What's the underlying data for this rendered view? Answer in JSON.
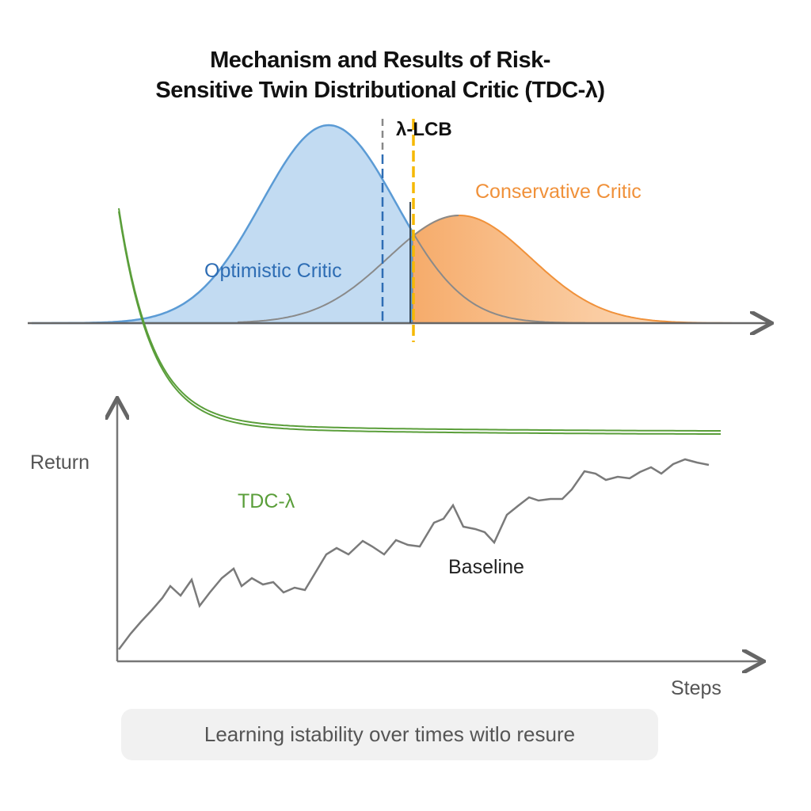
{
  "title": {
    "line1": "Mechanism and Results of Risk-",
    "line2": "Sensitive Twin Distributional Critic (TDC-λ)"
  },
  "mechanism": {
    "lcb_label": "λ-LCB",
    "optimistic_label": "Optimistic Critic",
    "conservative_label": "Conservative Critic",
    "colors": {
      "optimistic": "#5b9bd5",
      "conservative": "#f0913a",
      "lcb": "#f5b800",
      "overlap": "#8a8a8a"
    }
  },
  "results": {
    "y_label": "Return",
    "x_label": "Steps",
    "tdc_label": "TDC-λ",
    "baseline_label": "Baseline",
    "colors": {
      "tdc": "#5a9e3a",
      "baseline": "#7a7a7a"
    }
  },
  "caption": "Learning istability over times witlo resure"
}
